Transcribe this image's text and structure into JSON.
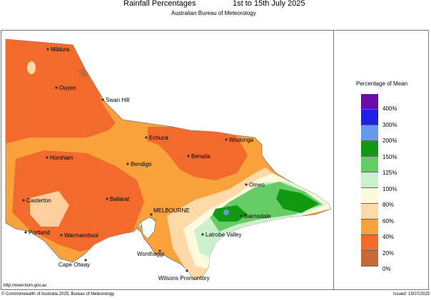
{
  "header": {
    "title": "Rainfall Percentages",
    "period": "1st to 15th July 2025",
    "subtitle": "Australian Bureau of Meteorology"
  },
  "legend": {
    "title": "Percentage of Mean",
    "bins": [
      {
        "label": "400%",
        "color": "#6a0da8"
      },
      {
        "label": "300%",
        "color": "#1f1fe8"
      },
      {
        "label": "200%",
        "color": "#6699ee"
      },
      {
        "label": "150%",
        "color": "#119911"
      },
      {
        "label": "125%",
        "color": "#66cc66"
      },
      {
        "label": "100%",
        "color": "#ccf0cc"
      },
      {
        "label": "80%",
        "color": "#fffadc"
      },
      {
        "label": "60%",
        "color": "#ffd9a8"
      },
      {
        "label": "40%",
        "color": "#f9a13a"
      },
      {
        "label": "20%",
        "color": "#f26a2c"
      },
      {
        "label": "0%",
        "color": "#c8693a"
      }
    ]
  },
  "places": {
    "mildura": "Mildura",
    "ouyen": "Ouyen",
    "swan_hill": "Swan Hill",
    "echuca": "Echuca",
    "wodonga": "Wodonga",
    "benalla": "Benalla",
    "horsham": "Horsham",
    "bendigo": "Bendigo",
    "omeo": "Omeo",
    "ballarat": "Ballarat",
    "casterton": "Casterton",
    "melbourne": "MELBOURNE",
    "bairnsdale": "Bairnsdale",
    "portland": "Portland",
    "warrnambool": "Warrnambool",
    "latrobe_valley": "Latrobe Valley",
    "wonthaggi": "Wonthaggi",
    "cape_otway": "Cape Otway",
    "wilsons_promontory": "Wilsons Promontory"
  },
  "footer": {
    "url": "http://www.bom.gov.au",
    "copyright": "© Commonwealth of Australia 2025, Bureau of Meteorology",
    "issued": "Issued: 15/07/2025"
  }
}
